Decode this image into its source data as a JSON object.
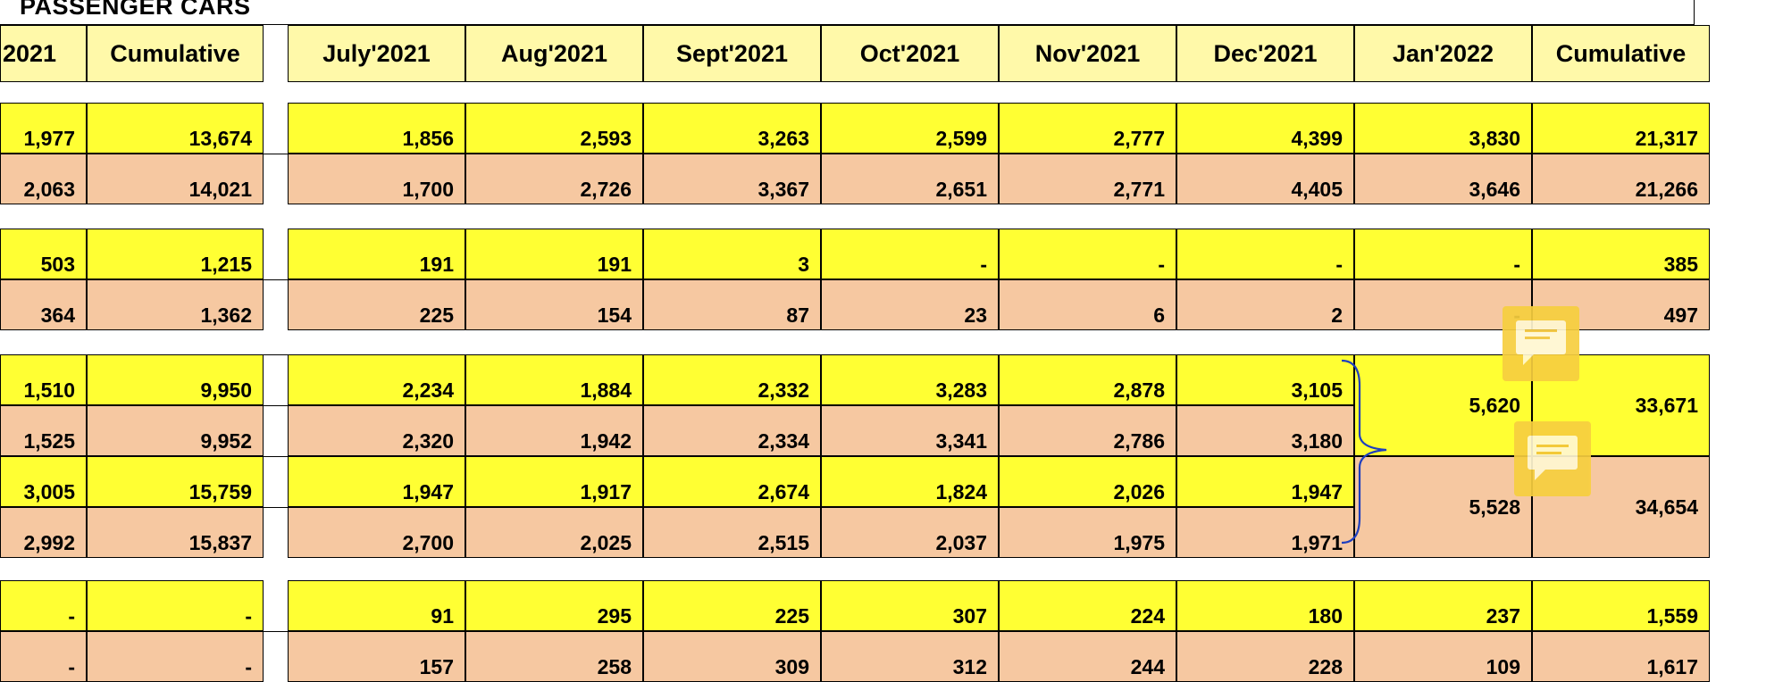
{
  "title": "PASSENGER CARS",
  "headers": {
    "left": [
      "2021",
      "Cumulative"
    ],
    "right": [
      "July'2021",
      "Aug'2021",
      "Sept'2021",
      "Oct'2021",
      "Nov'2021",
      "Dec'2021",
      "Jan'2022",
      "Cumulative"
    ]
  },
  "rows": [
    {
      "color": "yellow",
      "left": [
        "1,977",
        "13,674"
      ],
      "right": [
        "1,856",
        "2,593",
        "3,263",
        "2,599",
        "2,777",
        "4,399",
        "3,830",
        "21,317"
      ]
    },
    {
      "color": "orange",
      "left": [
        "2,063",
        "14,021"
      ],
      "right": [
        "1,700",
        "2,726",
        "3,367",
        "2,651",
        "2,771",
        "4,405",
        "3,646",
        "21,266"
      ]
    },
    {
      "color": "yellow",
      "left": [
        "503",
        "1,215"
      ],
      "right": [
        "191",
        "191",
        "3",
        "-",
        "-",
        "-",
        "-",
        "385"
      ]
    },
    {
      "color": "orange",
      "left": [
        "364",
        "1,362"
      ],
      "right": [
        "225",
        "154",
        "87",
        "23",
        "6",
        "2",
        "-",
        "497"
      ]
    },
    {
      "color": "yellow",
      "left": [
        "1,510",
        "9,950"
      ],
      "right": [
        "2,234",
        "1,884",
        "2,332",
        "3,283",
        "2,878",
        "3,105"
      ]
    },
    {
      "color": "orange",
      "left": [
        "1,525",
        "9,952"
      ],
      "right": [
        "2,320",
        "1,942",
        "2,334",
        "3,341",
        "2,786",
        "3,180"
      ]
    },
    {
      "color": "yellow",
      "left": [
        "3,005",
        "15,759"
      ],
      "right": [
        "1,947",
        "1,917",
        "2,674",
        "1,824",
        "2,026",
        "1,947"
      ]
    },
    {
      "color": "orange",
      "left": [
        "2,992",
        "15,837"
      ],
      "right": [
        "2,700",
        "2,025",
        "2,515",
        "2,037",
        "1,975",
        "1,971"
      ]
    },
    {
      "color": "yellow",
      "left": [
        "-",
        "-"
      ],
      "right": [
        "91",
        "295",
        "225",
        "307",
        "224",
        "180",
        "237",
        "1,559"
      ]
    },
    {
      "color": "orange",
      "left": [
        "-",
        "-"
      ],
      "right": [
        "157",
        "258",
        "309",
        "312",
        "244",
        "228",
        "109",
        "1,617"
      ]
    }
  ],
  "merged": {
    "yellow": [
      "5,620",
      "33,671"
    ],
    "orange": [
      "5,528",
      "34,654"
    ]
  },
  "colors": {
    "header": "#fff9a9",
    "yellow": "#ffff33",
    "orange": "#f6c8a1",
    "comment": "#f7cf3f",
    "brace": "#1f3fbf"
  },
  "icons": [
    "comment-icon",
    "comment-icon"
  ]
}
